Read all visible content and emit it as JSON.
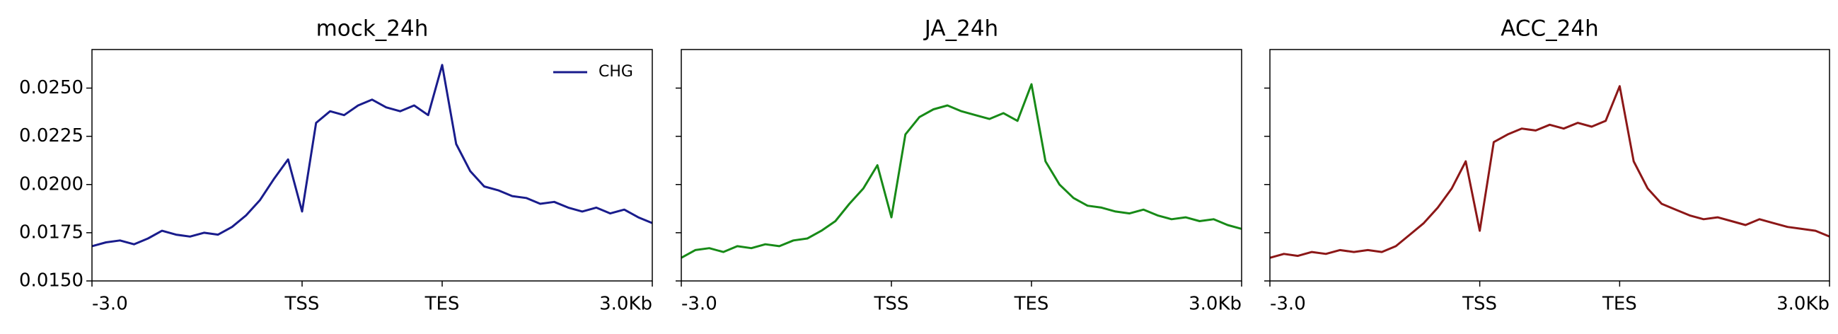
{
  "chart_data": [
    {
      "type": "line",
      "title": "mock_24h",
      "x": [
        0,
        20,
        40,
        60,
        80,
        100,
        120,
        140,
        160,
        180,
        200,
        220,
        240,
        260,
        280,
        300,
        320,
        340,
        360,
        380,
        400,
        420,
        440,
        460,
        480,
        500,
        520,
        540,
        560,
        580,
        600,
        620,
        640,
        660,
        680,
        700,
        720,
        740,
        760,
        780,
        800
      ],
      "series": [
        {
          "name": "CHG",
          "color": "#191c8c",
          "values": [
            0.0168,
            0.017,
            0.0171,
            0.0169,
            0.0172,
            0.0176,
            0.0174,
            0.0173,
            0.0175,
            0.0174,
            0.0178,
            0.0184,
            0.0192,
            0.0203,
            0.0213,
            0.0186,
            0.0232,
            0.0238,
            0.0236,
            0.0241,
            0.0244,
            0.024,
            0.0238,
            0.0241,
            0.0236,
            0.0262,
            0.0221,
            0.0207,
            0.0199,
            0.0197,
            0.0194,
            0.0193,
            0.019,
            0.0191,
            0.0188,
            0.0186,
            0.0188,
            0.0185,
            0.0187,
            0.0183,
            0.018
          ]
        }
      ],
      "xlim": [
        0,
        800
      ],
      "xticks": [
        {
          "value": 0,
          "label": "-3.0"
        },
        {
          "value": 300,
          "label": "TSS"
        },
        {
          "value": 500,
          "label": "TES"
        },
        {
          "value": 800,
          "label": "3.0Kb"
        }
      ],
      "ylim": [
        0.015,
        0.027
      ],
      "yticks": [
        {
          "value": 0.015,
          "label": "0.0150"
        },
        {
          "value": 0.0175,
          "label": "0.0175"
        },
        {
          "value": 0.02,
          "label": "0.0200"
        },
        {
          "value": 0.0225,
          "label": "0.0225"
        },
        {
          "value": 0.025,
          "label": "0.0250"
        }
      ],
      "legend": "upper right"
    },
    {
      "type": "line",
      "title": "JA_24h",
      "x": [
        0,
        20,
        40,
        60,
        80,
        100,
        120,
        140,
        160,
        180,
        200,
        220,
        240,
        260,
        280,
        300,
        320,
        340,
        360,
        380,
        400,
        420,
        440,
        460,
        480,
        500,
        520,
        540,
        560,
        580,
        600,
        620,
        640,
        660,
        680,
        700,
        720,
        740,
        760,
        780,
        800
      ],
      "series": [
        {
          "color": "#178a17",
          "values": [
            0.0162,
            0.0166,
            0.0167,
            0.0165,
            0.0168,
            0.0167,
            0.0169,
            0.0168,
            0.0171,
            0.0172,
            0.0176,
            0.0181,
            0.019,
            0.0198,
            0.021,
            0.0183,
            0.0226,
            0.0235,
            0.0239,
            0.0241,
            0.0238,
            0.0236,
            0.0234,
            0.0237,
            0.0233,
            0.0252,
            0.0212,
            0.02,
            0.0193,
            0.0189,
            0.0188,
            0.0186,
            0.0185,
            0.0187,
            0.0184,
            0.0182,
            0.0183,
            0.0181,
            0.0182,
            0.0179,
            0.0177
          ]
        }
      ],
      "xlim": [
        0,
        800
      ],
      "xticks": [
        {
          "value": 0,
          "label": "-3.0"
        },
        {
          "value": 300,
          "label": "TSS"
        },
        {
          "value": 500,
          "label": "TES"
        },
        {
          "value": 800,
          "label": "3.0Kb"
        }
      ],
      "ylim": [
        0.015,
        0.027
      ],
      "yticks": [
        0.015,
        0.0175,
        0.02,
        0.0225,
        0.025
      ]
    },
    {
      "type": "line",
      "title": "ACC_24h",
      "x": [
        0,
        20,
        40,
        60,
        80,
        100,
        120,
        140,
        160,
        180,
        200,
        220,
        240,
        260,
        280,
        300,
        320,
        340,
        360,
        380,
        400,
        420,
        440,
        460,
        480,
        500,
        520,
        540,
        560,
        580,
        600,
        620,
        640,
        660,
        680,
        700,
        720,
        740,
        760,
        780,
        800
      ],
      "series": [
        {
          "color": "#8c1717",
          "values": [
            0.0162,
            0.0164,
            0.0163,
            0.0165,
            0.0164,
            0.0166,
            0.0165,
            0.0166,
            0.0165,
            0.0168,
            0.0174,
            0.018,
            0.0188,
            0.0198,
            0.0212,
            0.0176,
            0.0222,
            0.0226,
            0.0229,
            0.0228,
            0.0231,
            0.0229,
            0.0232,
            0.023,
            0.0233,
            0.0251,
            0.0212,
            0.0198,
            0.019,
            0.0187,
            0.0184,
            0.0182,
            0.0183,
            0.0181,
            0.0179,
            0.0182,
            0.018,
            0.0178,
            0.0177,
            0.0176,
            0.0173
          ]
        }
      ],
      "xlim": [
        0,
        800
      ],
      "xticks": [
        {
          "value": 0,
          "label": "-3.0"
        },
        {
          "value": 300,
          "label": "TSS"
        },
        {
          "value": 500,
          "label": "TES"
        },
        {
          "value": 800,
          "label": "3.0Kb"
        }
      ],
      "ylim": [
        0.015,
        0.027
      ],
      "yticks": [
        0.015,
        0.0175,
        0.02,
        0.0225,
        0.025
      ]
    }
  ]
}
